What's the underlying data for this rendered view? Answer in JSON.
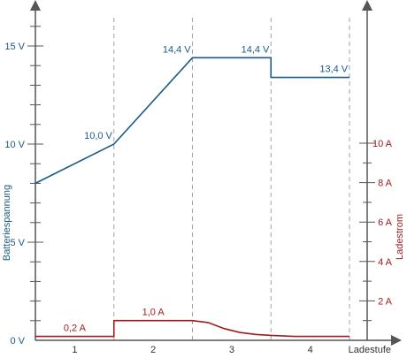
{
  "chart_data": {
    "type": "line",
    "x_axis": {
      "label": "Ladestufe",
      "range": [
        0,
        4
      ],
      "stage_labels": [
        "1",
        "2",
        "3",
        "4"
      ],
      "stage_boundaries": [
        1,
        2,
        3
      ]
    },
    "y_left": {
      "label": "Batteriespannung",
      "range": [
        0,
        16
      ],
      "ticks": [
        {
          "value": 0,
          "label": "0 V"
        },
        {
          "value": 5,
          "label": "5 V"
        },
        {
          "value": 10,
          "label": "10 V"
        },
        {
          "value": 15,
          "label": "15 V"
        }
      ],
      "minor_step": 1,
      "color": "#1a5a84"
    },
    "y_right": {
      "label": "Ladestrom",
      "range": [
        0,
        12
      ],
      "ticks": [
        {
          "value": 2,
          "label": "2 A"
        },
        {
          "value": 4,
          "label": "4 A"
        },
        {
          "value": 6,
          "label": "6 A"
        },
        {
          "value": 8,
          "label": "8 A"
        },
        {
          "value": 10,
          "label": "10 A"
        }
      ],
      "color": "#a31a1a"
    },
    "series": [
      {
        "axis": "left",
        "color": "#1a5a84",
        "x": [
          0,
          1,
          2,
          3,
          3,
          4
        ],
        "y": [
          8.0,
          10.0,
          14.4,
          14.4,
          13.4,
          13.4
        ]
      },
      {
        "axis": "right",
        "color": "#a31a1a",
        "x": [
          0,
          1,
          1,
          2,
          2.2,
          2.4,
          2.6,
          2.8,
          3,
          3.3,
          4
        ],
        "y": [
          0.2,
          0.2,
          1.0,
          1.0,
          0.9,
          0.6,
          0.4,
          0.3,
          0.25,
          0.2,
          0.2
        ]
      }
    ],
    "annotations": [
      {
        "axis": "left",
        "x": 0.8,
        "y": 10.0,
        "text": "10,0 V"
      },
      {
        "axis": "left",
        "x": 1.8,
        "y": 14.4,
        "text": "14,4 V"
      },
      {
        "axis": "left",
        "x": 2.8,
        "y": 14.4,
        "text": "14,4 V"
      },
      {
        "axis": "left",
        "x": 3.8,
        "y": 13.4,
        "text": "13,4 V"
      },
      {
        "axis": "right",
        "x": 0.5,
        "y": 0.2,
        "text": "0,2 A"
      },
      {
        "axis": "right",
        "x": 1.5,
        "y": 1.0,
        "text": "1,0 A"
      }
    ]
  }
}
